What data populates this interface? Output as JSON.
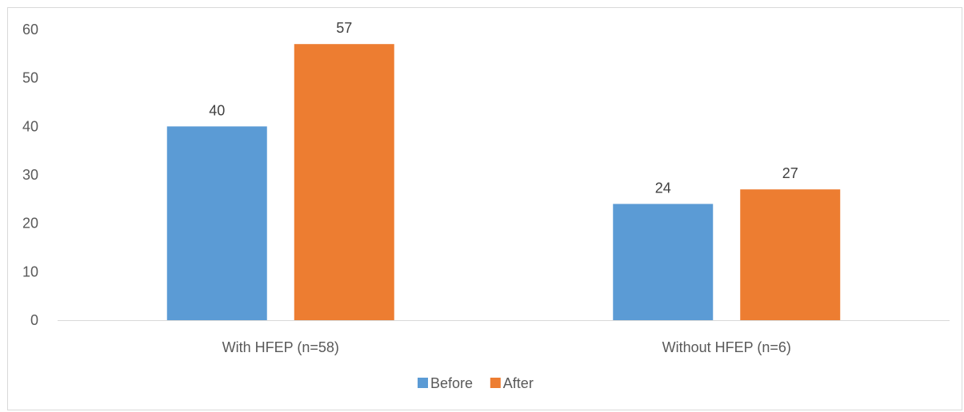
{
  "chart_data": {
    "type": "bar",
    "categories": [
      "With HFEP (n=58)",
      "Without HFEP (n=6)"
    ],
    "series": [
      {
        "name": "Before",
        "values": [
          40,
          24
        ],
        "color": "#5b9bd5"
      },
      {
        "name": "After",
        "values": [
          57,
          27
        ],
        "color": "#ed7d31"
      }
    ],
    "ylim": [
      0,
      60
    ],
    "yticks": [
      0,
      10,
      20,
      30,
      40,
      50,
      60
    ],
    "grid": false,
    "legend": "bottom",
    "data_labels": true
  }
}
